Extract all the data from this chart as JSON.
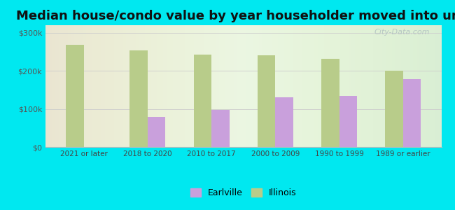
{
  "title": "Median house/condo value by year householder moved into unit",
  "categories": [
    "2021 or later",
    "2018 to 2020",
    "2010 to 2017",
    "2000 to 2009",
    "1990 to 1999",
    "1989 or earlier"
  ],
  "earlville_values": [
    null,
    80000,
    98000,
    130000,
    135000,
    178000
  ],
  "illinois_values": [
    268000,
    253000,
    243000,
    241000,
    232000,
    201000
  ],
  "earlville_color": "#c9a0dc",
  "illinois_color": "#b8cc8a",
  "bg_outer": "#00e8f0",
  "bg_chart_left": "#d8edd8",
  "bg_chart_right": "#f5fff5",
  "ylim": [
    0,
    320000
  ],
  "yticks": [
    0,
    100000,
    200000,
    300000
  ],
  "ytick_labels": [
    "$0",
    "$100k",
    "$200k",
    "$300k"
  ],
  "bar_width": 0.28,
  "legend_labels": [
    "Earlville",
    "Illinois"
  ],
  "title_fontsize": 13,
  "watermark": "City-Data.com"
}
